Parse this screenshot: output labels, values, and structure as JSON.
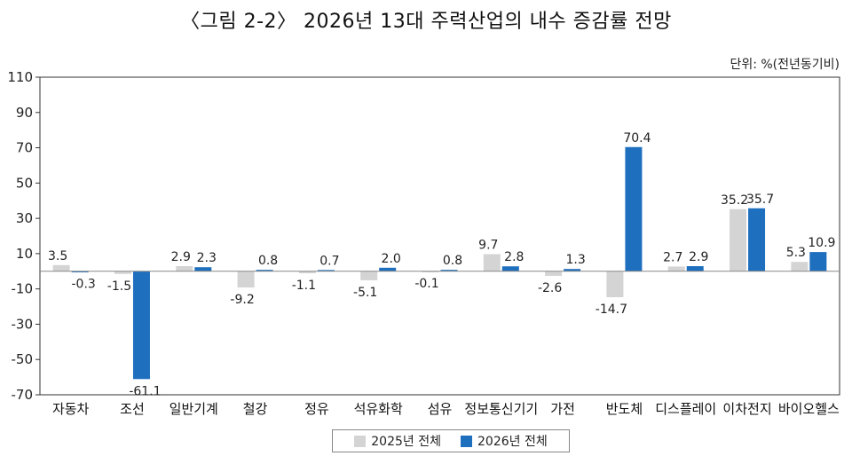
{
  "title": "〈그림 2-2〉 2026년 13대 주력산업의 내수 증감률 전망",
  "unit_label": "단위: %(전년동기비)",
  "colors": {
    "s2025": "#d4d4d4",
    "s2026": "#1f6fbf",
    "axis": "#333333",
    "baseline": "#888888"
  },
  "chart_data": {
    "type": "bar",
    "categories": [
      "자동차",
      "조선",
      "일반기계",
      "철강",
      "정유",
      "석유화학",
      "섬유",
      "정보통신기기",
      "가전",
      "반도체",
      "디스플레이",
      "이차전지",
      "바이오헬스"
    ],
    "series": [
      {
        "name": "2025년 전체",
        "values": [
          3.5,
          -1.5,
          2.9,
          -9.2,
          -1.1,
          -5.1,
          -0.1,
          9.7,
          -2.6,
          -14.7,
          2.7,
          35.2,
          5.3
        ],
        "labels": [
          "3.5",
          "-1.5",
          "2.9",
          "-9.2",
          "-1.1",
          "-5.1",
          "-0.1",
          "9.7",
          "-2.6",
          "-14.7",
          "2.7",
          "35.2",
          "5.3"
        ]
      },
      {
        "name": "2026년 전체",
        "values": [
          -0.3,
          -61.1,
          2.3,
          0.8,
          0.7,
          2.0,
          0.8,
          2.8,
          1.3,
          70.4,
          2.9,
          35.7,
          10.9
        ],
        "labels": [
          "-0.3",
          "-61.1",
          "2.3",
          "0.8",
          "0.7",
          "2.0",
          "0.8",
          "2.8",
          "1.3",
          "70.4",
          "2.9",
          "35.7",
          "10.9"
        ]
      }
    ],
    "yticks": [
      "110",
      "90",
      "70",
      "50",
      "30",
      "10",
      "-10",
      "-30",
      "-50",
      "-70"
    ],
    "ylim": [
      -70,
      110
    ],
    "grid": false,
    "legend": "bottom-center"
  }
}
